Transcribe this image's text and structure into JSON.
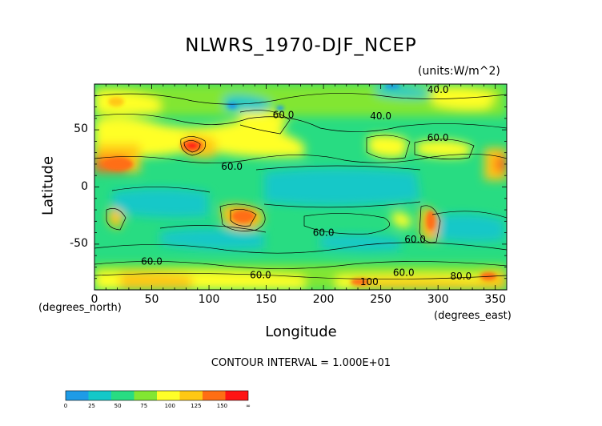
{
  "chart_data": {
    "type": "heatmap",
    "title": "NLWRS_1970-DJF_NCEP",
    "units": "(units:W/m^2)",
    "xlabel": "Longitude",
    "ylabel": "Latitude",
    "x_units": "(degrees_east)",
    "y_units": "(degrees_north)",
    "xlim": [
      0,
      360
    ],
    "ylim": [
      -90,
      90
    ],
    "x_ticks": [
      "0",
      "50",
      "100",
      "150",
      "200",
      "250",
      "300",
      "350"
    ],
    "y_ticks": [
      "50",
      "0",
      "-50"
    ],
    "contour_interval": "CONTOUR INTERVAL = 1.000E+01",
    "contour_labels": [
      {
        "text": "40.0",
        "x": 250,
        "y": 62
      },
      {
        "text": "60.0",
        "x": 165,
        "y": 63
      },
      {
        "text": "60.0",
        "x": 300,
        "y": 43
      },
      {
        "text": "60.0",
        "x": 120,
        "y": 18
      },
      {
        "text": "60.0",
        "x": 200,
        "y": -40
      },
      {
        "text": "60.0",
        "x": 280,
        "y": -46
      },
      {
        "text": "60.0",
        "x": 50,
        "y": -65
      },
      {
        "text": "60.0",
        "x": 270,
        "y": -75
      },
      {
        "text": "80.0",
        "x": 320,
        "y": -78
      },
      {
        "text": "100",
        "x": 240,
        "y": -83
      },
      {
        "text": "60.0",
        "x": 145,
        "y": -77
      },
      {
        "text": "40.0",
        "x": 300,
        "y": 85
      }
    ],
    "colorbar": {
      "labels": [
        "0",
        "25",
        "50",
        "75",
        "100",
        "125",
        "150",
        "∞"
      ],
      "colors": [
        "#1e9be6",
        "#14c8c8",
        "#28dc82",
        "#82e632",
        "#ffff28",
        "#ffc814",
        "#ff6e14",
        "#ff1414"
      ]
    }
  }
}
